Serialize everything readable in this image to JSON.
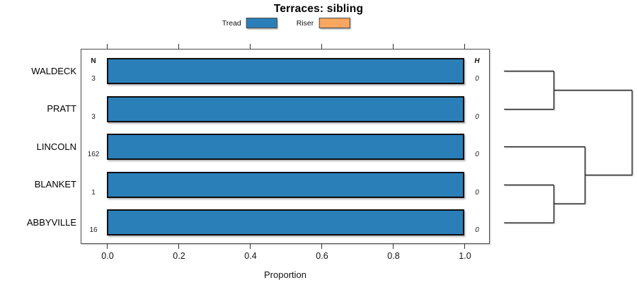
{
  "title": "Terraces: sibling",
  "legend": {
    "items": [
      {
        "label": "Tread",
        "color": "#2b7fb9"
      },
      {
        "label": "Riser",
        "color": "#f9a65f"
      }
    ]
  },
  "chart_data": {
    "type": "bar",
    "orientation": "horizontal",
    "title": "Terraces: sibling",
    "xlabel": "Proportion",
    "xlim": [
      0,
      1
    ],
    "xticks": [
      0.0,
      0.2,
      0.4,
      0.6,
      0.8,
      1.0
    ],
    "xtick_labels": [
      "0.0",
      "0.2",
      "0.4",
      "0.6",
      "0.8",
      "1.0"
    ],
    "categories": [
      "WALDECK",
      "PRATT",
      "LINCOLN",
      "BLANKET",
      "ABBYVILLE"
    ],
    "series": [
      {
        "name": "Tread",
        "color": "#2b7fb9",
        "values": [
          1.0,
          1.0,
          1.0,
          1.0,
          1.0
        ]
      },
      {
        "name": "Riser",
        "color": "#f9a65f",
        "values": [
          0.0,
          0.0,
          0.0,
          0.0,
          0.0
        ]
      }
    ],
    "n_label": "N",
    "n_values": [
      "3",
      "3",
      "162",
      "1",
      "16"
    ],
    "h_label": "H",
    "h_values": [
      "0",
      "0",
      "0",
      "0",
      "0"
    ],
    "legend_position": "top",
    "grid": false
  },
  "dendrogram": {
    "leaves_top_to_bottom": [
      "WALDECK",
      "PRATT",
      "LINCOLN",
      "BLANKET",
      "ABBYVILLE"
    ],
    "merges": [
      [
        "WALDECK",
        "PRATT"
      ],
      [
        "BLANKET",
        "ABBYVILLE"
      ],
      [
        "LINCOLN",
        "(BLANKET,ABBYVILLE)"
      ],
      [
        "(WALDECK,PRATT)",
        "(LINCOLN,(BLANKET,ABBYVILLE))"
      ]
    ],
    "color": "#1a1a1a",
    "shadow_color": "#b3b3b3",
    "segments": [
      [
        20,
        40.5,
        90.5,
        40.5
      ],
      [
        20,
        94.5,
        90.5,
        94.5
      ],
      [
        90.5,
        40.5,
        90.5,
        94.5
      ],
      [
        90.5,
        67.5,
        201,
        67.5
      ],
      [
        20,
        147.5,
        134.5,
        147.5
      ],
      [
        20,
        201.5,
        90.5,
        201.5
      ],
      [
        20,
        255,
        90.5,
        255
      ],
      [
        90.5,
        201.5,
        90.5,
        255
      ],
      [
        90.5,
        228,
        134.5,
        228
      ],
      [
        134.5,
        147.5,
        134.5,
        228
      ],
      [
        134.5,
        187.5,
        201,
        187.5
      ],
      [
        201,
        67.5,
        201,
        187.5
      ]
    ]
  }
}
